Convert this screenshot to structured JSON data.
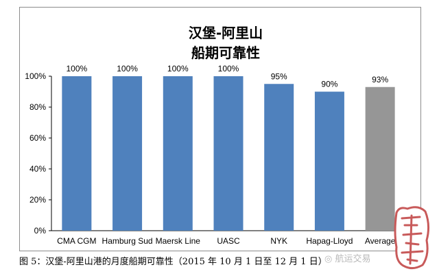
{
  "chart_data": {
    "type": "bar",
    "title_lines": [
      "汉堡-阿里山",
      "船期可靠性"
    ],
    "categories": [
      "CMA CGM",
      "Hamburg Sud",
      "Maersk Line",
      "UASC",
      "NYK",
      "Hapag-Lloyd",
      "Average"
    ],
    "values": [
      100,
      100,
      100,
      100,
      95,
      90,
      93
    ],
    "data_labels": [
      "100%",
      "100%",
      "100%",
      "100%",
      "95%",
      "90%",
      "93%"
    ],
    "y_ticks": [
      0,
      20,
      40,
      60,
      80,
      100
    ],
    "y_tick_labels": [
      "0%",
      "20%",
      "40%",
      "60%",
      "80%",
      "100%"
    ],
    "ylim": [
      0,
      100
    ],
    "grid": false,
    "legend": false,
    "bar_colors": [
      "#4f81bd",
      "#4f81bd",
      "#4f81bd",
      "#4f81bd",
      "#4f81bd",
      "#4f81bd",
      "#969696"
    ],
    "xlabel": "",
    "ylabel": ""
  },
  "caption": "图 5：汉堡-阿里山港的月度船期可靠性（2015 年 10 月 1 日至 12 月 1 日）",
  "watermark_text": "航运交易",
  "stamp_text": "订船网"
}
